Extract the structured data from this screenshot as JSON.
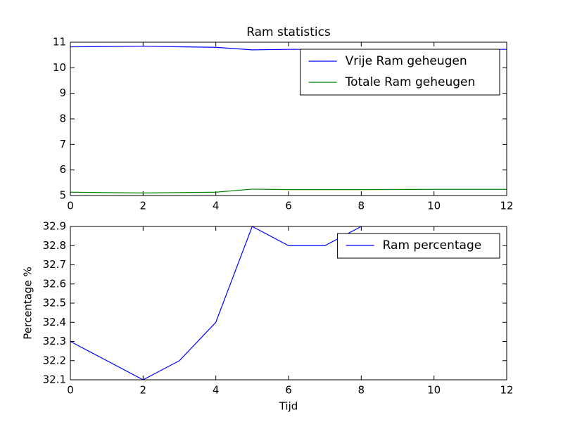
{
  "chart_data": [
    {
      "type": "line",
      "title": "Ram statistics",
      "x": [
        0,
        2,
        4,
        5,
        6,
        8,
        10,
        12
      ],
      "series": [
        {
          "name": "Vrije Ram geheugen",
          "color": "#0000ff",
          "values": [
            10.82,
            10.84,
            10.8,
            10.7,
            10.72,
            10.72,
            10.72,
            10.72
          ]
        },
        {
          "name": "Totale Ram geheugen",
          "color": "#008000",
          "values": [
            5.13,
            5.1,
            5.13,
            5.25,
            5.23,
            5.23,
            5.24,
            5.24
          ]
        }
      ],
      "xlim": [
        0,
        12
      ],
      "xticks": [
        0,
        2,
        4,
        6,
        8,
        10,
        12
      ],
      "ylim": [
        5,
        11
      ],
      "yticks": [
        5,
        6,
        7,
        8,
        9,
        10,
        11
      ],
      "legend": "upper right"
    },
    {
      "type": "line",
      "x_label": "Tijd",
      "y_label": "Percentage %",
      "x": [
        0,
        2,
        3,
        4,
        5,
        6,
        7,
        8
      ],
      "series": [
        {
          "name": "Ram percentage",
          "color": "#0000ff",
          "values": [
            32.3,
            32.1,
            32.2,
            32.4,
            32.9,
            32.8,
            32.8,
            32.9
          ]
        }
      ],
      "xlim": [
        0,
        12
      ],
      "xticks": [
        0,
        2,
        4,
        6,
        8,
        10,
        12
      ],
      "ylim": [
        32.1,
        32.9
      ],
      "yticks": [
        32.1,
        32.2,
        32.3,
        32.4,
        32.5,
        32.6,
        32.7,
        32.8,
        32.9
      ],
      "legend": "upper right"
    }
  ]
}
